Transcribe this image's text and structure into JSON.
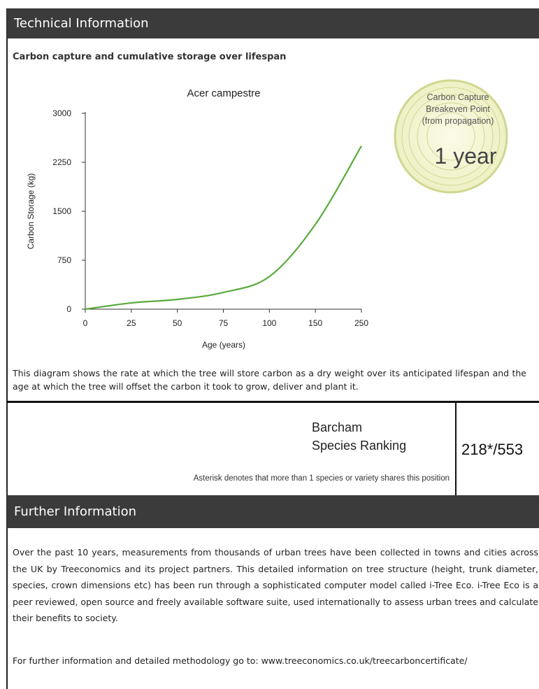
{
  "header": {
    "title": "Technical Information"
  },
  "subtitle": "Carbon capture and cumulative storage over lifespan",
  "chart": {
    "type": "line",
    "title": "Acer campestre",
    "x_label": "Age (years)",
    "y_label": "Carbon Storage (kg)",
    "categories": [
      "0",
      "25",
      "50",
      "75",
      "100",
      "150",
      "250"
    ],
    "values": [
      0,
      96,
      150,
      257,
      500,
      1300,
      2500
    ],
    "color": "#5aaa3c",
    "ylim": [
      0,
      3000
    ],
    "yticks": [
      0,
      750,
      1500,
      2250,
      3000
    ]
  },
  "badge": {
    "lines": [
      "Carbon Capture",
      "Breakeven Point",
      "(from propagation)"
    ],
    "value": "1 year"
  },
  "description": "This diagram shows the rate at which the tree will store carbon as a dry weight over its anticipated lifespan and the age at which the tree will offset the carbon it took to grow, deliver and plant it.",
  "ranking": {
    "label_1": "Barcham",
    "label_2": "Species Ranking",
    "value": "218*/553",
    "note": "Asterisk denotes that more than 1 species or variety shares this position"
  },
  "further": {
    "title": "Further Information",
    "paragraph": "Over the past 10 years, measurements from thousands of urban trees have been collected in towns and cities across the UK by Treeconomics and its project partners. This detailed information on tree structure (height, trunk diameter, species, crown dimensions etc) has been run through a sophisticated computer model called i-Tree Eco. i-Tree Eco is a peer reviewed, open source and freely available software suite, used internationally to assess urban trees and calculate their benefits to society.",
    "link_line": "For further information and detailed methodology go to: www.treeconomics.co.uk/treecarboncertificate/"
  }
}
